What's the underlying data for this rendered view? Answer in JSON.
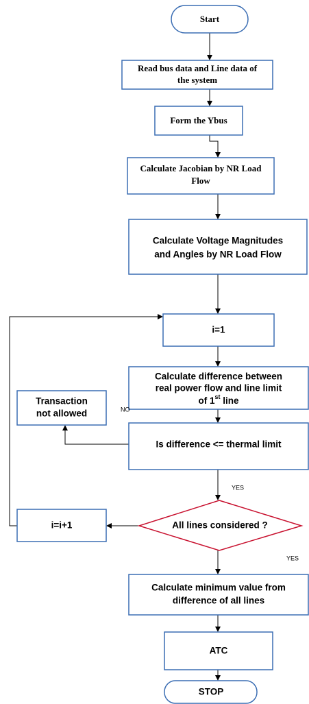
{
  "nodes": [
    {
      "lines": [
        "Start"
      ]
    },
    {
      "lines": [
        "Read bus data and Line data of",
        "the system"
      ]
    },
    {
      "lines": [
        "Form the Ybus"
      ]
    },
    {
      "lines": [
        "Calculate Jacobian by NR Load",
        "Flow"
      ]
    },
    {
      "lines": [
        "Calculate Voltage Magnitudes",
        "and Angles by NR Load Flow"
      ]
    },
    {
      "lines": [
        "i=1"
      ]
    },
    {
      "lines": [
        "Calculate difference between",
        "real power flow and line limit",
        "of 1"
      ],
      "superscript": "st",
      "suffix": " line"
    },
    {
      "lines": [
        "Is difference <= thermal limit"
      ]
    },
    {
      "lines": [
        "Transaction",
        "not allowed"
      ]
    },
    {
      "lines": [
        "All lines considered ?"
      ]
    },
    {
      "lines": [
        "i=i+1"
      ]
    },
    {
      "lines": [
        "Calculate minimum value from",
        "difference of all lines"
      ]
    },
    {
      "lines": [
        "ATC"
      ]
    },
    {
      "lines": [
        "STOP"
      ]
    }
  ],
  "edge_labels": [
    "NO",
    "YES",
    "YES"
  ]
}
